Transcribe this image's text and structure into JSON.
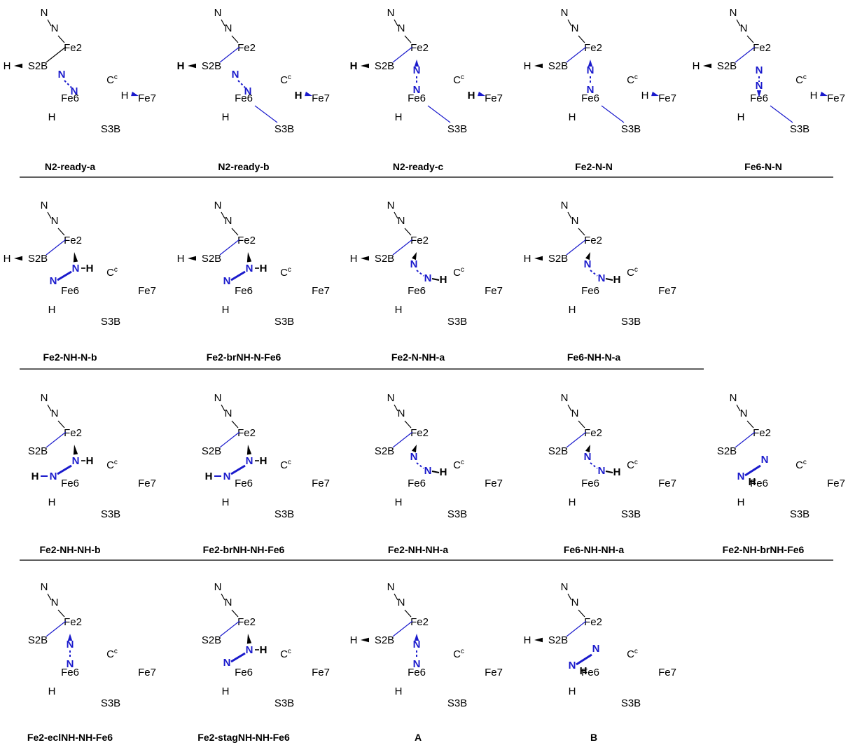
{
  "atoms": {
    "fe2": "Fe2",
    "fe6": "Fe6",
    "fe7": "Fe7",
    "s2b": "S2B",
    "s3b": "S3B",
    "c": "C",
    "c_sup": "c",
    "h": "H",
    "n": "N"
  },
  "rows": [
    {
      "structures": [
        {
          "label": "N2-ready-a"
        },
        {
          "label": "N2-ready-b"
        },
        {
          "label": "N2-ready-c"
        },
        {
          "label": "Fe2-N-N"
        },
        {
          "label": "Fe6-N-N"
        }
      ]
    },
    {
      "structures": [
        {
          "label": "Fe2-NH-N-b"
        },
        {
          "label": "Fe2-brNH-N-Fe6"
        },
        {
          "label": "Fe2-N-NH-a"
        },
        {
          "label": "Fe6-NH-N-a"
        }
      ]
    },
    {
      "structures": [
        {
          "label": "Fe2-NH-NH-b"
        },
        {
          "label": "Fe2-brNH-NH-Fe6"
        },
        {
          "label": "Fe2-NH-NH-a"
        },
        {
          "label": "Fe6-NH-NH-a"
        },
        {
          "label": "Fe2-NH-brNH-Fe6"
        }
      ]
    },
    {
      "structures": [
        {
          "label": "Fe2-eclNH-NH-Fe6"
        },
        {
          "label": "Fe2-stagNH-NH-Fe6"
        },
        {
          "label": "A"
        },
        {
          "label": "B"
        }
      ]
    }
  ],
  "colors": {
    "bond": "#000000",
    "ligand": "#1a1acc",
    "separator": "#000000"
  }
}
